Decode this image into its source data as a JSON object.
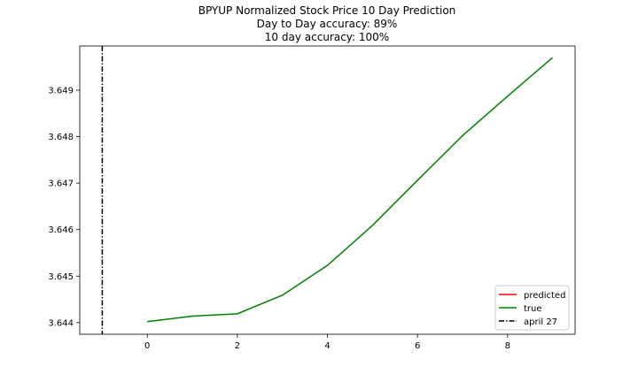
{
  "chart_data": {
    "type": "line",
    "title_lines": [
      "BPYUP Normalized Stock Price 10 Day Prediction",
      "Day to Day accuracy: 89%",
      "10 day accuracy: 100%"
    ],
    "xlabel": "",
    "ylabel": "",
    "xlim": [
      -1.5,
      9.5
    ],
    "ylim": [
      3.64375,
      3.64995
    ],
    "x_ticks": [
      0,
      2,
      4,
      6,
      8
    ],
    "y_ticks": [
      3.644,
      3.645,
      3.646,
      3.647,
      3.648,
      3.649
    ],
    "y_tick_labels": [
      "3.644",
      "3.645",
      "3.646",
      "3.647",
      "3.648",
      "3.649"
    ],
    "grid": false,
    "legend_position": "lower-right",
    "series": [
      {
        "name": "predicted",
        "color": "#ff0000",
        "x": [],
        "y": []
      },
      {
        "name": "true",
        "color": "#008000",
        "x": [
          0,
          1,
          2,
          3,
          4,
          5,
          6,
          7,
          8,
          9
        ],
        "y": [
          3.64402,
          3.64414,
          3.64419,
          3.64459,
          3.64523,
          3.64609,
          3.64706,
          3.64802,
          3.64887,
          3.6497
        ]
      }
    ],
    "vline": {
      "name": "april 27",
      "x": -1,
      "color": "#000000",
      "style": "dashdot"
    }
  }
}
